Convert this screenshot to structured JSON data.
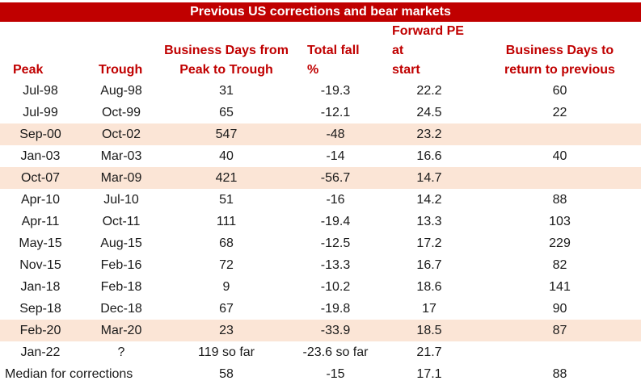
{
  "title": "Previous US corrections and bear markets",
  "headers": {
    "peak": "Peak",
    "trough": "Trough",
    "days_line1": "Business Days from",
    "days_line2": "Peak to Trough",
    "fall_line1": "Total fall",
    "fall_line2": "%",
    "pe_line1": "Forward PE at",
    "pe_line2": "start",
    "return_line1": "Business Days to",
    "return_line2": "return to previous"
  },
  "rows": [
    {
      "peak": "Jul-98",
      "trough": "Aug-98",
      "days": "31",
      "fall": "-19.3",
      "pe": "22.2",
      "ret": "60",
      "highlight": false
    },
    {
      "peak": "Jul-99",
      "trough": "Oct-99",
      "days": "65",
      "fall": "-12.1",
      "pe": "24.5",
      "ret": "22",
      "highlight": false
    },
    {
      "peak": "Sep-00",
      "trough": "Oct-02",
      "days": "547",
      "fall": "-48",
      "pe": "23.2",
      "ret": "",
      "highlight": true
    },
    {
      "peak": "Jan-03",
      "trough": "Mar-03",
      "days": "40",
      "fall": "-14",
      "pe": "16.6",
      "ret": "40",
      "highlight": false
    },
    {
      "peak": "Oct-07",
      "trough": "Mar-09",
      "days": "421",
      "fall": "-56.7",
      "pe": "14.7",
      "ret": "",
      "highlight": true
    },
    {
      "peak": "Apr-10",
      "trough": "Jul-10",
      "days": "51",
      "fall": "-16",
      "pe": "14.2",
      "ret": "88",
      "highlight": false
    },
    {
      "peak": "Apr-11",
      "trough": "Oct-11",
      "days": "111",
      "fall": "-19.4",
      "pe": "13.3",
      "ret": "103",
      "highlight": false
    },
    {
      "peak": "May-15",
      "trough": "Aug-15",
      "days": "68",
      "fall": "-12.5",
      "pe": "17.2",
      "ret": "229",
      "highlight": false
    },
    {
      "peak": "Nov-15",
      "trough": "Feb-16",
      "days": "72",
      "fall": "-13.3",
      "pe": "16.7",
      "ret": "82",
      "highlight": false
    },
    {
      "peak": "Jan-18",
      "trough": "Feb-18",
      "days": "9",
      "fall": "-10.2",
      "pe": "18.6",
      "ret": "141",
      "highlight": false
    },
    {
      "peak": "Sep-18",
      "trough": "Dec-18",
      "days": "67",
      "fall": "-19.8",
      "pe": "17",
      "ret": "90",
      "highlight": false
    },
    {
      "peak": "Feb-20",
      "trough": "Mar-20",
      "days": "23",
      "fall": "-33.9",
      "pe": "18.5",
      "ret": "87",
      "highlight": true
    },
    {
      "peak": "Jan-22",
      "trough": "?",
      "days": "119 so far",
      "fall": "-23.6 so far",
      "pe": "21.7",
      "ret": "",
      "highlight": false
    }
  ],
  "median": {
    "label": "Median for corrections",
    "days": "58",
    "fall": "-15",
    "pe": "17.1",
    "ret": "88"
  },
  "colors": {
    "title_bg": "#c00000",
    "header_text": "#c00000",
    "highlight_bg": "#fbe5d6"
  }
}
